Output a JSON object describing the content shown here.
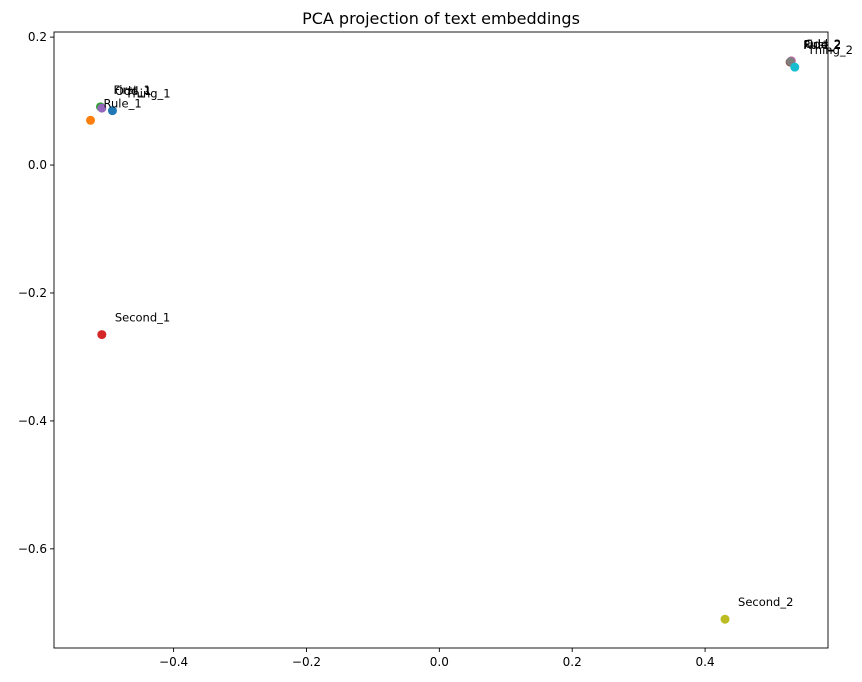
{
  "chart_data": {
    "type": "scatter",
    "title": "PCA projection of text embeddings",
    "xlabel": "",
    "ylabel": "",
    "xlim": [
      -0.58,
      0.585
    ],
    "ylim": [
      -0.755,
      0.208
    ],
    "xticks": [
      -0.4,
      -0.2,
      0.0,
      0.2,
      0.4
    ],
    "xtick_labels": [
      "−0.4",
      "−0.2",
      "0.0",
      "0.2",
      "0.4"
    ],
    "yticks": [
      0.2,
      0.0,
      -0.2,
      -0.4,
      -0.6
    ],
    "ytick_labels": [
      "0.2",
      "0.0",
      "−0.2",
      "−0.4",
      "−0.6"
    ],
    "grid": false,
    "points": [
      {
        "label": "Thing_1",
        "x": -0.492,
        "y": 0.085,
        "color": "#1f77b4"
      },
      {
        "label": "Rule_1",
        "x": -0.525,
        "y": 0.07,
        "color": "#ff7f0e"
      },
      {
        "label": "First_1",
        "x": -0.51,
        "y": 0.091,
        "color": "#2ca02c"
      },
      {
        "label": "Second_1",
        "x": -0.508,
        "y": -0.265,
        "color": "#d62728"
      },
      {
        "label": "Odd_1",
        "x": -0.508,
        "y": 0.089,
        "color": "#9467bd"
      },
      {
        "label": "Rule_2",
        "x": 0.528,
        "y": 0.161,
        "color": "#8c564b"
      },
      {
        "label": "Odd_2",
        "x": 0.53,
        "y": 0.163,
        "color": "#e377c2"
      },
      {
        "label": "First_2",
        "x": 0.529,
        "y": 0.162,
        "color": "#7f7f7f"
      },
      {
        "label": "Second_2",
        "x": 0.43,
        "y": -0.71,
        "color": "#bcbd22"
      },
      {
        "label": "Thing_2",
        "x": 0.535,
        "y": 0.153,
        "color": "#17becf"
      }
    ]
  }
}
